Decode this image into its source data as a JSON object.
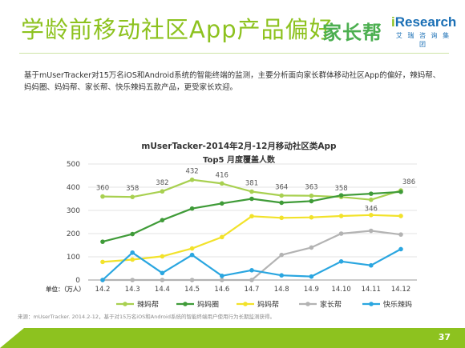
{
  "header": {
    "title": "学龄前移动社区App产品偏好",
    "logo_left": "家长帮",
    "logo_right_brand_prefix": "i",
    "logo_right_brand": "Research",
    "logo_right_sub": "艾 瑞 咨 询 集 团"
  },
  "description": "基于mUserTracker对15万名iOS和Android系统的智能终端的监测，主要分析面向家长群体移动社区App的偏好，辣妈帮、妈妈圈、妈妈帮、家长帮、快乐辣妈五款产品，更受家长欢迎。",
  "footnote": "来源：mUserTracker. 2014.2-12，基于对15万名iOS和Android系统的智能终端用户使用行为长期监测获得。",
  "page_number": "37",
  "chart_data": {
    "type": "line",
    "title": "mUserTacker-2014年2月-12月移动社区类App",
    "subtitle": "Top5 月度覆盖人数",
    "ylabel": "单位：（万人）",
    "ylim": [
      0,
      500
    ],
    "yticks": [
      0,
      100,
      200,
      300,
      400,
      500
    ],
    "categories": [
      "14.2",
      "14.3",
      "14.4",
      "14.5",
      "14.6",
      "14.7",
      "14.8",
      "14.9",
      "14.10",
      "14.11",
      "14.12"
    ],
    "grid": "horizontal",
    "legend_position": "bottom",
    "series": [
      {
        "name": "辣妈帮",
        "color": "#a8d050",
        "values": [
          360,
          358,
          382,
          432,
          416,
          381,
          364,
          363,
          358,
          346,
          386
        ],
        "labels": [
          "360",
          "358",
          "382",
          "432",
          "416",
          "381",
          "364",
          "363",
          "358",
          "346",
          "386"
        ]
      },
      {
        "name": "妈妈圈",
        "color": "#3f9b38",
        "values": [
          165,
          198,
          258,
          308,
          330,
          350,
          333,
          340,
          365,
          372,
          380
        ]
      },
      {
        "name": "妈妈帮",
        "color": "#f2e22a",
        "values": [
          78,
          88,
          102,
          136,
          185,
          275,
          268,
          270,
          276,
          280,
          276
        ]
      },
      {
        "name": "家长帮",
        "color": "#b3b3b3",
        "values": [
          0,
          0,
          0,
          0,
          0,
          0,
          108,
          140,
          200,
          212,
          196
        ]
      },
      {
        "name": "快乐辣妈",
        "color": "#2aa6e0",
        "values": [
          0,
          118,
          30,
          108,
          18,
          42,
          20,
          15,
          80,
          63,
          133
        ]
      }
    ]
  }
}
